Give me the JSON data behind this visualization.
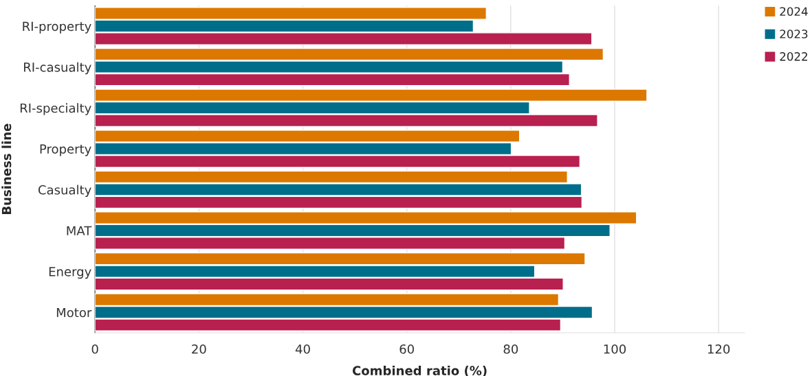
{
  "chart_data": {
    "type": "bar",
    "orientation": "horizontal",
    "xlabel": "Combined ratio (%)",
    "ylabel": "Business line",
    "categories": [
      "RI-property",
      "RI-casualty",
      "RI-specialty",
      "Property",
      "Casualty",
      "MAT",
      "Energy",
      "Motor"
    ],
    "series": [
      {
        "name": "2024",
        "color": "#dc7800",
        "values": [
          75.3,
          97.8,
          106.2,
          81.7,
          90.9,
          104.2,
          94.3,
          89.2
        ]
      },
      {
        "name": "2023",
        "color": "#006e8a",
        "values": [
          72.8,
          90.0,
          83.6,
          80.1,
          93.6,
          99.1,
          84.6,
          95.7
        ]
      },
      {
        "name": "2022",
        "color": "#b8204f",
        "values": [
          95.6,
          91.3,
          96.7,
          93.3,
          93.7,
          90.4,
          90.1,
          89.6
        ]
      }
    ],
    "xlim": [
      0,
      125
    ],
    "xticks": [
      0,
      20,
      40,
      60,
      80,
      100,
      120
    ],
    "grid": "x",
    "legend": "top right"
  }
}
